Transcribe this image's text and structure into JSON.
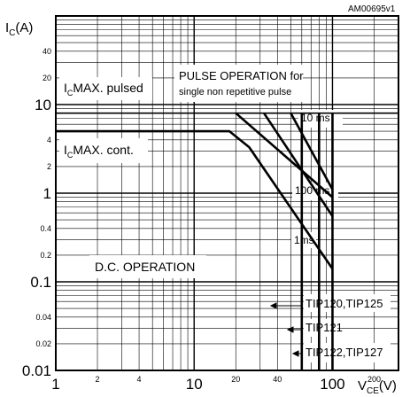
{
  "chart_data": {
    "type": "line",
    "figure_id": "AM00695v1",
    "xlabel": {
      "main": "V",
      "sub": "CE",
      "unit": "(V)"
    },
    "ylabel": {
      "main": "I",
      "sub": "C",
      "unit": "(A)"
    },
    "x_scale": "log",
    "y_scale": "log",
    "xlim": [
      1,
      300
    ],
    "ylim": [
      0.01,
      100
    ],
    "grid": true,
    "x_ticks": [
      {
        "value": 1,
        "label": "1",
        "size": "big"
      },
      {
        "value": 2,
        "label": "2",
        "size": "small"
      },
      {
        "value": 4,
        "label": "4",
        "size": "small"
      },
      {
        "value": 10,
        "label": "10",
        "size": "big"
      },
      {
        "value": 20,
        "label": "20",
        "size": "small"
      },
      {
        "value": 40,
        "label": "40",
        "size": "small"
      },
      {
        "value": 100,
        "label": "100",
        "size": "big"
      },
      {
        "value": 200,
        "label": "200",
        "size": "small"
      }
    ],
    "y_ticks": [
      {
        "value": 0.01,
        "label": "0.01",
        "size": "big"
      },
      {
        "value": 0.02,
        "label": "0.02",
        "size": "small"
      },
      {
        "value": 0.04,
        "label": "0.04",
        "size": "small"
      },
      {
        "value": 0.1,
        "label": "0.1",
        "size": "big"
      },
      {
        "value": 0.2,
        "label": "0.2",
        "size": "small"
      },
      {
        "value": 0.4,
        "label": "0.4",
        "size": "small"
      },
      {
        "value": 1,
        "label": "1",
        "size": "big"
      },
      {
        "value": 2,
        "label": "2",
        "size": "small"
      },
      {
        "value": 4,
        "label": "4",
        "size": "small"
      },
      {
        "value": 10,
        "label": "10",
        "size": "big"
      },
      {
        "value": 20,
        "label": "20",
        "size": "small"
      },
      {
        "value": 40,
        "label": "40",
        "size": "small"
      }
    ],
    "reference_lines": [
      {
        "name": "IcMAX pulsed",
        "y": 8
      },
      {
        "name": "IcMAX cont",
        "y": 5
      }
    ],
    "series": [
      {
        "name": "D.C. OPERATION",
        "points": [
          [
            1,
            5
          ],
          [
            18,
            5
          ],
          [
            25,
            3.3
          ],
          [
            100,
            0.14
          ]
        ]
      },
      {
        "name": "100 ms",
        "points": [
          [
            20,
            8
          ],
          [
            100,
            0.9
          ]
        ]
      },
      {
        "name": "1ms",
        "points": [
          [
            32,
            8
          ],
          [
            100,
            0.55
          ]
        ]
      },
      {
        "name": "10 ms",
        "points": [
          [
            50,
            8
          ],
          [
            100,
            1.1
          ]
        ]
      }
    ],
    "vlines": [
      {
        "name": "TIP120,TIP125",
        "x": 60
      },
      {
        "name": "TIP121",
        "x": 80
      },
      {
        "name": "TIP122,TIP127",
        "x": 100
      }
    ],
    "labels": {
      "pulsed": {
        "main": "I",
        "sub": "C",
        "rest": "MAX. pulsed"
      },
      "cont": {
        "main": "I",
        "sub": "C",
        "rest": "MAX. cont."
      },
      "pulse_op_1": "PULSE OPERATION for",
      "pulse_op_2": "single non repetitive pulse",
      "dc_op": "D.C. OPERATION",
      "ms10": "10 ms",
      "ms100": "100 ms",
      "ms1": "1ms",
      "tip_a": "TIP120,TIP125",
      "tip_b": "TIP121",
      "tip_c": "TIP122,TIP127"
    }
  }
}
